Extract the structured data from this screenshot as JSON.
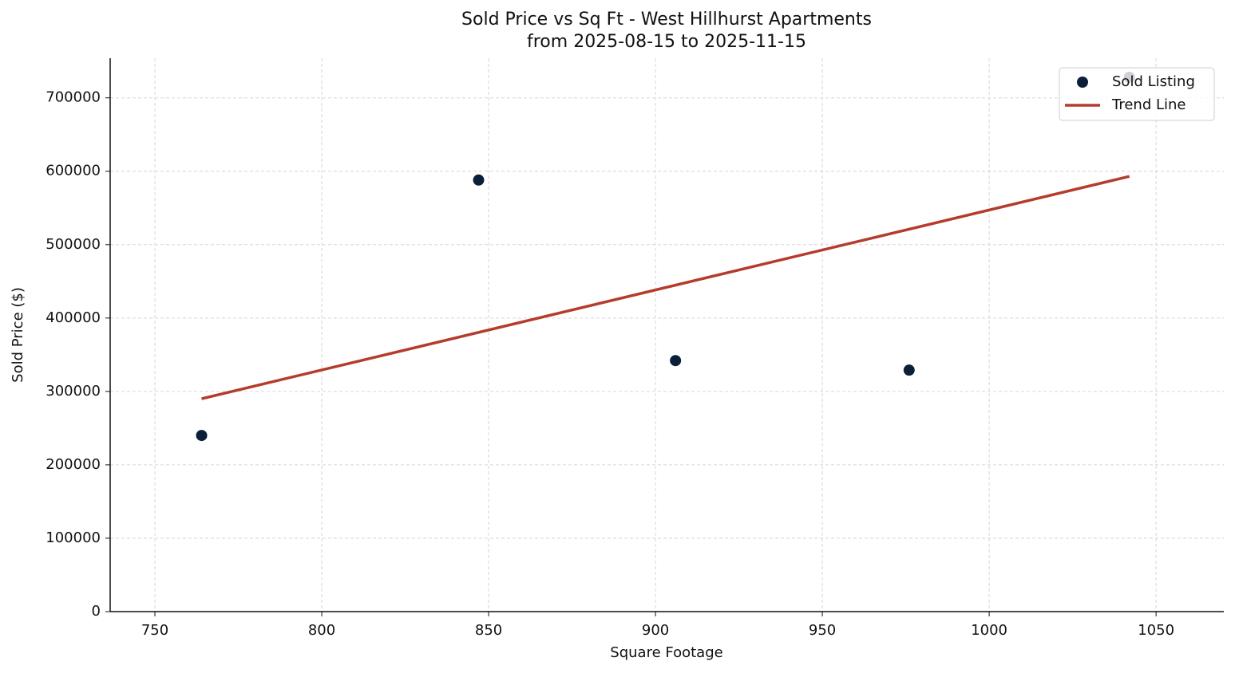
{
  "chart_data": {
    "type": "scatter",
    "title": "Sold Price vs Sq Ft - West Hillhurst Apartments",
    "subtitle": "from 2025-08-15 to 2025-11-15",
    "x_label": "Square Footage",
    "y_label": "Sold Price ($)",
    "series": [
      {
        "name": "Sold Listing",
        "mark": "point",
        "color": "#0b1f3a",
        "x": [
          764,
          847,
          906,
          976,
          1042
        ],
        "values": [
          240000,
          588000,
          342000,
          329000,
          728000
        ]
      },
      {
        "name": "Trend Line",
        "mark": "line",
        "color": "#b53c2c",
        "x": [
          764,
          1042
        ],
        "values": [
          290000,
          593000
        ]
      }
    ],
    "xlim": [
      736.6,
      1070.3
    ],
    "xticks": [
      750,
      800,
      850,
      900,
      950,
      1000,
      1050
    ],
    "ylim": [
      0,
      754000
    ],
    "yticks": [
      0,
      100000,
      200000,
      300000,
      400000,
      500000,
      600000,
      700000
    ],
    "grid": true,
    "legend": "upper right"
  }
}
